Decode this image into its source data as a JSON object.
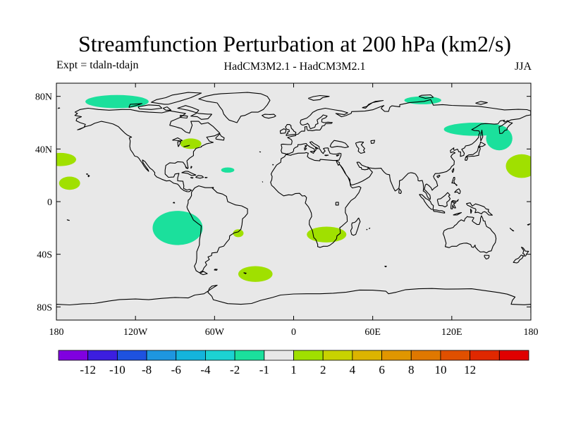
{
  "title": "Streamfunction Perturbation at 200 hPa (km2/s)",
  "subtitle_left": "Expt = tdaln-tdajn",
  "subtitle_center": "HadCM3M2.1 - HadCM3M2.1",
  "subtitle_right": "JJA",
  "map": {
    "projection": "cylindrical-equidistant",
    "lon_range": [
      -180,
      180
    ],
    "lat_range": [
      -90,
      90
    ],
    "ocean_color": "#e8e8e8",
    "coastline_color": "#000000",
    "x_ticks": [
      {
        "value": -180,
        "label": "180"
      },
      {
        "value": -120,
        "label": "120W"
      },
      {
        "value": -60,
        "label": "60W"
      },
      {
        "value": 0,
        "label": "0"
      },
      {
        "value": 60,
        "label": "60E"
      },
      {
        "value": 120,
        "label": "120E"
      },
      {
        "value": 180,
        "label": "180"
      }
    ],
    "y_ticks": [
      {
        "value": 80,
        "label": "80N"
      },
      {
        "value": 40,
        "label": "40N"
      },
      {
        "value": 0,
        "label": "0"
      },
      {
        "value": -40,
        "label": "40S"
      },
      {
        "value": -80,
        "label": "80S"
      }
    ],
    "anomaly_regions": [
      {
        "sign": "negative",
        "level": "-2 to -1",
        "color": "#1be09c",
        "center": [
          -134,
          76
        ],
        "radius": [
          24,
          5
        ]
      },
      {
        "sign": "negative",
        "level": "-2 to -1",
        "color": "#1be09c",
        "center": [
          -88,
          -20
        ],
        "radius": [
          19,
          13
        ]
      },
      {
        "sign": "negative",
        "level": "-2 to -1",
        "color": "#1be09c",
        "center": [
          -50,
          24
        ],
        "radius": [
          5,
          2
        ]
      },
      {
        "sign": "negative",
        "level": "-2 to -1",
        "color": "#1be09c",
        "center": [
          98,
          77
        ],
        "radius": [
          14,
          3
        ]
      },
      {
        "sign": "negative",
        "level": "-2 to -1",
        "color": "#1be09c",
        "center": [
          138,
          55
        ],
        "radius": [
          24,
          5
        ]
      },
      {
        "sign": "negative",
        "level": "-2 to -1",
        "color": "#1be09c",
        "center": [
          156,
          48
        ],
        "radius": [
          10,
          9
        ]
      },
      {
        "sign": "positive",
        "level": "1 to 2",
        "color": "#a0e000",
        "center": [
          -177,
          32
        ],
        "radius": [
          12,
          5
        ]
      },
      {
        "sign": "positive",
        "level": "1 to 2",
        "color": "#a0e000",
        "center": [
          -170,
          14
        ],
        "radius": [
          8,
          5
        ]
      },
      {
        "sign": "positive",
        "level": "1 to 2",
        "color": "#a0e000",
        "center": [
          -78,
          44
        ],
        "radius": [
          8,
          4
        ]
      },
      {
        "sign": "positive",
        "level": "1 to 2",
        "color": "#a0e000",
        "center": [
          -42,
          -24
        ],
        "radius": [
          4,
          3
        ]
      },
      {
        "sign": "positive",
        "level": "1 to 2",
        "color": "#a0e000",
        "center": [
          -29,
          -55
        ],
        "radius": [
          13,
          6
        ]
      },
      {
        "sign": "positive",
        "level": "1 to 2",
        "color": "#a0e000",
        "center": [
          25,
          -25
        ],
        "radius": [
          15,
          6
        ]
      },
      {
        "sign": "positive",
        "level": "1 to 2",
        "color": "#a0e000",
        "center": [
          173,
          27
        ],
        "radius": [
          12,
          9
        ]
      }
    ]
  },
  "colorbar": {
    "colors": [
      "#8000e0",
      "#3c1ee0",
      "#1e52e0",
      "#1e96e0",
      "#14b4dc",
      "#1cd2d2",
      "#1be09c",
      "#e8e8e8",
      "#a0e000",
      "#c8d200",
      "#dcb400",
      "#e09600",
      "#e07800",
      "#e05000",
      "#e02800",
      "#e00000"
    ],
    "labels": [
      "-12",
      "-10",
      "-8",
      "-6",
      "-4",
      "-2",
      "-1",
      "1",
      "2",
      "4",
      "6",
      "8",
      "10",
      "12"
    ]
  }
}
